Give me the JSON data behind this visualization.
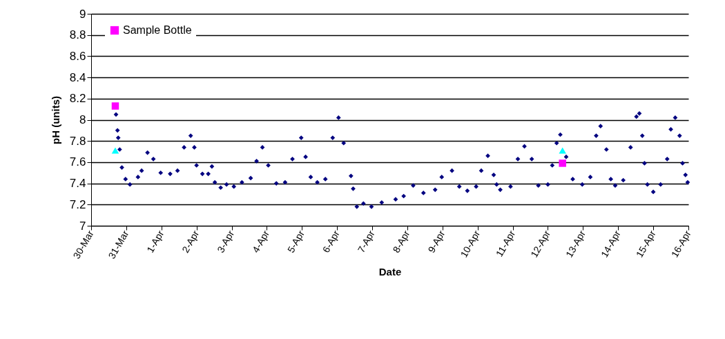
{
  "chart_data": {
    "type": "scatter",
    "xlabel": "Date",
    "ylabel": "pH (units)",
    "ylim": [
      7,
      9
    ],
    "yticks": [
      7,
      7.2,
      7.4,
      7.6,
      7.8,
      8,
      8.2,
      8.4,
      8.6,
      8.8,
      9
    ],
    "xlim": [
      "--03-30",
      "--04-16"
    ],
    "xticks": [
      {
        "value": "--03-30",
        "label": "30-Mar"
      },
      {
        "value": "--03-31",
        "label": "31-Mar"
      },
      {
        "value": "--04-01",
        "label": "1-Apr"
      },
      {
        "value": "--04-02",
        "label": "2-Apr"
      },
      {
        "value": "--04-03",
        "label": "3-Apr"
      },
      {
        "value": "--04-04",
        "label": "4-Apr"
      },
      {
        "value": "--04-05",
        "label": "5-Apr"
      },
      {
        "value": "--04-06",
        "label": "6-Apr"
      },
      {
        "value": "--04-07",
        "label": "7-Apr"
      },
      {
        "value": "--04-08",
        "label": "8-Apr"
      },
      {
        "value": "--04-09",
        "label": "9-Apr"
      },
      {
        "value": "--04-10",
        "label": "10-Apr"
      },
      {
        "value": "--04-11",
        "label": "11-Apr"
      },
      {
        "value": "--04-12",
        "label": "12-Apr"
      },
      {
        "value": "--04-13",
        "label": "13-Apr"
      },
      {
        "value": "--04-14",
        "label": "14-Apr"
      },
      {
        "value": "--04-15",
        "label": "15-Apr"
      },
      {
        "value": "--04-16",
        "label": "16-Apr"
      }
    ],
    "grid": "y",
    "legend": "top left",
    "series": [
      {
        "color": "#000080",
        "marker": "diamond",
        "x": [
          "--03-30T17:00",
          "--03-30T18:00",
          "--03-30T18:30",
          "--03-30T19:30",
          "--03-30T21:00",
          "--03-30T23:30",
          "--03-31T02:30",
          "--03-31T08:00",
          "--03-31T10:30",
          "--03-31T14:30",
          "--03-31T18:30",
          "--03-31T23:30",
          "--04-01T06:00",
          "--04-01T11:00",
          "--04-01T15:30",
          "--04-01T20:00",
          "--04-01T22:30",
          "--04-02T00:00",
          "--04-02T04:00",
          "--04-02T08:00",
          "--04-02T10:30",
          "--04-02T12:30",
          "--04-02T16:30",
          "--04-02T20:30",
          "--04-03T01:30",
          "--04-03T07:00",
          "--04-03T13:00",
          "--04-03T17:00",
          "--04-03T21:00",
          "--04-04T01:00",
          "--04-04T06:30",
          "--04-04T12:30",
          "--04-04T17:30",
          "--04-04T23:30",
          "--04-05T02:30",
          "--04-05T06:00",
          "--04-05T10:30",
          "--04-05T16:00",
          "--04-05T21:00",
          "--04-06T01:00",
          "--04-06T04:30",
          "--04-06T09:30",
          "--04-06T11:00",
          "--04-06T13:30",
          "--04-06T18:00",
          "--04-06T23:30",
          "--04-07T06:30",
          "--04-07T16:00",
          "--04-07T21:30",
          "--04-08T04:00",
          "--04-08T11:00",
          "--04-08T19:00",
          "--04-08T23:30",
          "--04-09T06:30",
          "--04-09T11:30",
          "--04-09T17:00",
          "--04-09T23:00",
          "--04-10T02:30",
          "--04-10T07:00",
          "--04-10T11:00",
          "--04-10T13:00",
          "--04-10T15:30",
          "--04-10T22:30",
          "--04-11T03:30",
          "--04-11T08:00",
          "--04-11T13:00",
          "--04-11T17:30",
          "--04-12T00:00",
          "--04-12T03:00",
          "--04-12T06:00",
          "--04-12T08:30",
          "--04-12T12:30",
          "--04-12T17:00",
          "--04-12T23:30",
          "--04-13T05:00",
          "--04-13T09:00",
          "--04-13T12:00",
          "--04-13T16:00",
          "--04-13T19:00",
          "--04-13T22:00",
          "--04-14T03:30",
          "--04-14T08:30",
          "--04-14T12:30",
          "--04-14T14:30",
          "--04-14T16:30",
          "--04-14T18:00",
          "--04-14T20:00",
          "--04-15T00:00",
          "--04-15T05:00",
          "--04-15T09:30",
          "--04-15T12:00",
          "--04-15T15:00",
          "--04-15T18:00",
          "--04-15T20:00",
          "--04-15T22:00",
          "--04-15T23:30"
        ],
        "values": [
          8.05,
          7.9,
          7.83,
          7.72,
          7.55,
          7.44,
          7.39,
          7.46,
          7.52,
          7.69,
          7.63,
          7.5,
          7.49,
          7.52,
          7.74,
          7.85,
          7.74,
          7.57,
          7.49,
          7.49,
          7.56,
          7.41,
          7.36,
          7.39,
          7.37,
          7.41,
          7.45,
          7.61,
          7.74,
          7.57,
          7.4,
          7.41,
          7.63,
          7.83,
          7.65,
          7.46,
          7.41,
          7.44,
          7.83,
          8.02,
          7.78,
          7.47,
          7.35,
          7.18,
          7.21,
          7.18,
          7.22,
          7.25,
          7.28,
          7.38,
          7.31,
          7.34,
          7.46,
          7.52,
          7.37,
          7.33,
          7.37,
          7.52,
          7.66,
          7.48,
          7.39,
          7.34,
          7.37,
          7.63,
          7.75,
          7.63,
          7.38,
          7.39,
          7.57,
          7.78,
          7.86,
          7.65,
          7.44,
          7.39,
          7.46,
          7.85,
          7.94,
          7.72,
          7.44,
          7.38,
          7.43,
          7.74,
          8.03,
          8.06,
          7.85,
          7.59,
          7.39,
          7.32,
          7.39,
          7.63,
          7.91,
          8.02,
          7.85,
          7.59,
          7.48,
          7.41
        ]
      },
      {
        "name": "Sample Bottle",
        "color": "#ff00ff",
        "marker": "square",
        "x": [
          "--03-30T16:30",
          "--04-12T10:00"
        ],
        "values": [
          8.13,
          7.59
        ]
      },
      {
        "color": "#00ffff",
        "marker": "triangle",
        "x": [
          "--03-30T16:30",
          "--04-12T10:00"
        ],
        "values": [
          7.71,
          7.71
        ]
      }
    ]
  }
}
